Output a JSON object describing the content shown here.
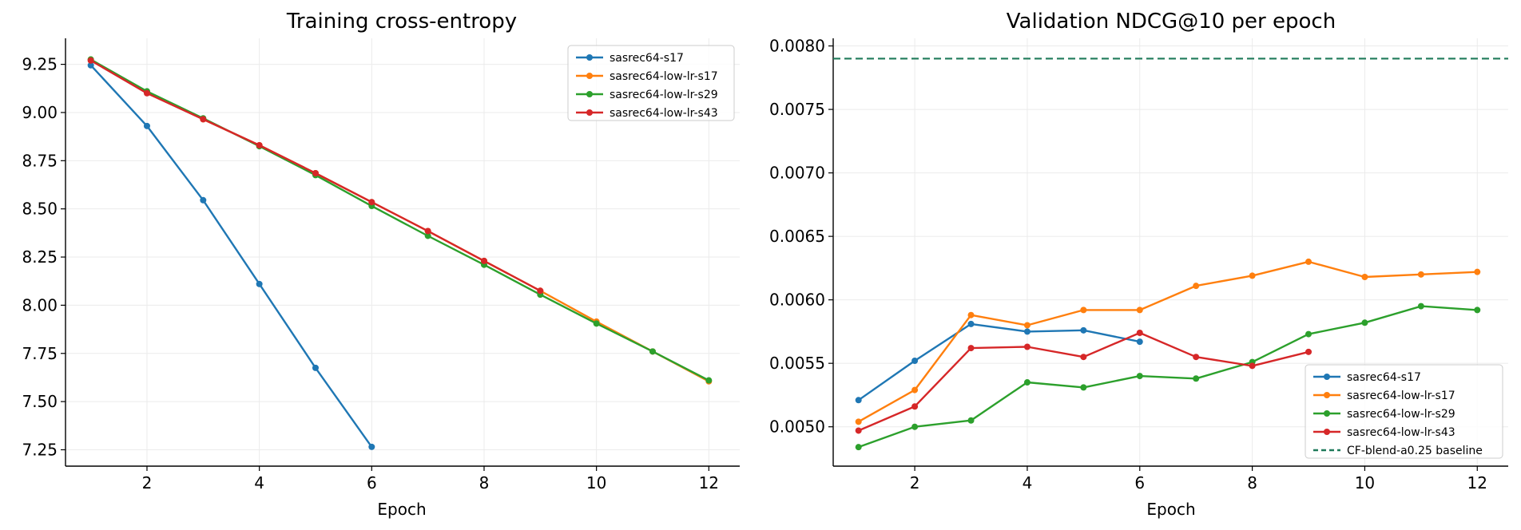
{
  "figure": {
    "background": "#ffffff",
    "grid_color": "#ebebeb"
  },
  "chart_data": [
    {
      "type": "line",
      "title": "Training cross-entropy",
      "xlabel": "Epoch",
      "ylabel": "",
      "xlim": [
        0.55,
        12.55
      ],
      "ylim": [
        7.165,
        9.385
      ],
      "xticks": [
        2,
        4,
        6,
        8,
        10,
        12
      ],
      "yticks": [
        7.25,
        7.5,
        7.75,
        8.0,
        8.25,
        8.5,
        8.75,
        9.0,
        9.25
      ],
      "ytick_decimals": 2,
      "grid": true,
      "legend_position": "top-right",
      "series": [
        {
          "name": "sasrec64-s17",
          "color": "#1f77b4",
          "x": [
            1,
            2,
            3,
            4,
            5,
            6
          ],
          "y": [
            9.245,
            8.93,
            8.545,
            8.11,
            7.675,
            7.265
          ]
        },
        {
          "name": "sasrec64-low-lr-s17",
          "color": "#ff7f0e",
          "x": [
            1,
            2,
            3,
            4,
            5,
            6,
            7,
            8,
            9,
            10,
            11,
            12
          ],
          "y": [
            9.275,
            9.105,
            8.965,
            8.83,
            8.685,
            8.535,
            8.385,
            8.23,
            8.075,
            7.915,
            7.76,
            7.605
          ]
        },
        {
          "name": "sasrec64-low-lr-s29",
          "color": "#2ca02c",
          "x": [
            1,
            2,
            3,
            4,
            5,
            6,
            7,
            8,
            9,
            10,
            11,
            12
          ],
          "y": [
            9.275,
            9.11,
            8.97,
            8.825,
            8.675,
            8.515,
            8.36,
            8.21,
            8.055,
            7.905,
            7.76,
            7.61
          ]
        },
        {
          "name": "sasrec64-low-lr-s43",
          "color": "#d62728",
          "x": [
            1,
            2,
            3,
            4,
            5,
            6,
            7,
            8,
            9
          ],
          "y": [
            9.27,
            9.1,
            8.965,
            8.83,
            8.685,
            8.535,
            8.385,
            8.23,
            8.075
          ]
        }
      ]
    },
    {
      "type": "line",
      "title": "Validation NDCG@10 per epoch",
      "xlabel": "Epoch",
      "ylabel": "",
      "xlim": [
        0.55,
        12.55
      ],
      "ylim": [
        0.00469,
        0.00806
      ],
      "xticks": [
        2,
        4,
        6,
        8,
        10,
        12
      ],
      "yticks": [
        0.005,
        0.0055,
        0.006,
        0.0065,
        0.007,
        0.0075,
        0.008
      ],
      "ytick_decimals": 4,
      "grid": true,
      "legend_position": "bottom-right",
      "series": [
        {
          "name": "sasrec64-s17",
          "color": "#1f77b4",
          "x": [
            1,
            2,
            3,
            4,
            5,
            6
          ],
          "y": [
            0.00521,
            0.00552,
            0.00581,
            0.00575,
            0.00576,
            0.00567
          ]
        },
        {
          "name": "sasrec64-low-lr-s17",
          "color": "#ff7f0e",
          "x": [
            1,
            2,
            3,
            4,
            5,
            6,
            7,
            8,
            9,
            10,
            11,
            12
          ],
          "y": [
            0.00504,
            0.00529,
            0.00588,
            0.0058,
            0.00592,
            0.00592,
            0.00611,
            0.00619,
            0.0063,
            0.00618,
            0.0062,
            0.00622
          ]
        },
        {
          "name": "sasrec64-low-lr-s29",
          "color": "#2ca02c",
          "x": [
            1,
            2,
            3,
            4,
            5,
            6,
            7,
            8,
            9,
            10,
            11,
            12
          ],
          "y": [
            0.00484,
            0.005,
            0.00505,
            0.00535,
            0.00531,
            0.0054,
            0.00538,
            0.00551,
            0.00573,
            0.00582,
            0.00595,
            0.00592
          ]
        },
        {
          "name": "sasrec64-low-lr-s43",
          "color": "#d62728",
          "x": [
            1,
            2,
            3,
            4,
            5,
            6,
            7,
            8,
            9
          ],
          "y": [
            0.00497,
            0.00516,
            0.00562,
            0.00563,
            0.00555,
            0.00574,
            0.00555,
            0.00548,
            0.00559
          ]
        }
      ],
      "reference_lines": [
        {
          "name": "CF-blend-a0.25 baseline",
          "color": "#1f7a5a",
          "y": 0.0079,
          "style": "dashed"
        }
      ]
    }
  ]
}
